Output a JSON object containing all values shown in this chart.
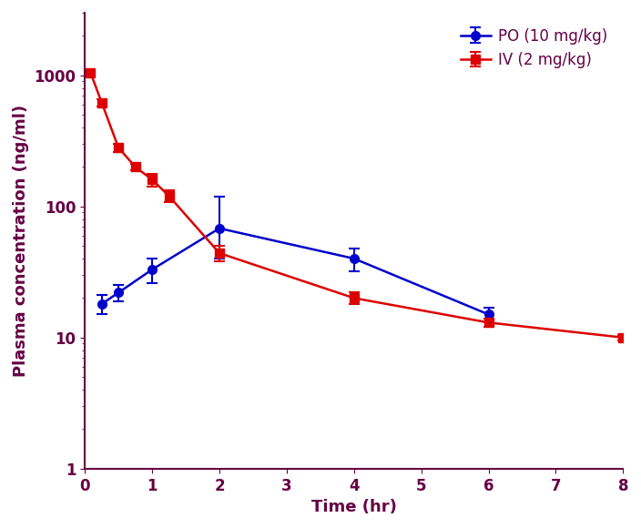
{
  "po_x": [
    0.25,
    0.5,
    1.0,
    2.0,
    4.0,
    6.0
  ],
  "po_y": [
    18,
    22,
    33,
    68,
    40,
    15
  ],
  "po_yerr_low": [
    3,
    3,
    7,
    28,
    8,
    2
  ],
  "po_yerr_high": [
    3,
    3,
    7,
    50,
    8,
    2
  ],
  "iv_x": [
    0.083,
    0.25,
    0.5,
    0.75,
    1.0,
    1.25,
    2.0,
    4.0,
    6.0,
    8.0
  ],
  "iv_y": [
    1050,
    620,
    280,
    200,
    160,
    120,
    44,
    20,
    13,
    10
  ],
  "iv_yerr_low": [
    30,
    40,
    20,
    12,
    18,
    12,
    6,
    2,
    1,
    0.5
  ],
  "iv_yerr_high": [
    30,
    40,
    20,
    12,
    18,
    12,
    6,
    2,
    1,
    0.5
  ],
  "po_color": "#0000cc",
  "iv_color": "#dd0000",
  "ylabel": "Plasma concentration (ng/ml)",
  "xlabel": "Time (hr)",
  "legend_po": "PO (10 mg/kg)",
  "legend_iv": "IV (2 mg/kg)",
  "xlim": [
    0,
    8
  ],
  "spine_color": "#660044",
  "tick_label_color": "#660044",
  "label_color": "#660044",
  "background_color": "#ffffff",
  "xticks": [
    0,
    1,
    2,
    3,
    4,
    5,
    6,
    7,
    8
  ]
}
